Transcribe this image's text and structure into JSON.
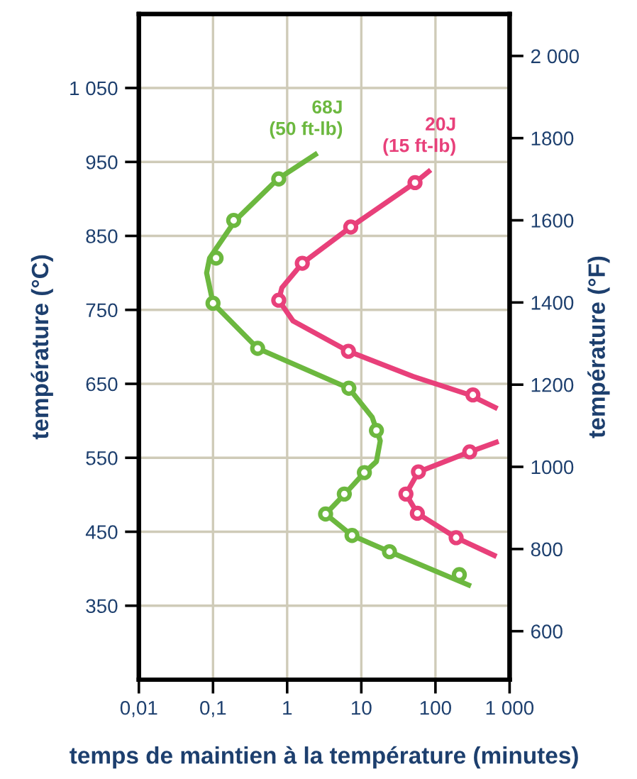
{
  "chart_data": {
    "type": "scatter",
    "xlabel": "temps de maintien à la température (minutes)",
    "ylabel": "température (°C)",
    "y2label": "température (°F)",
    "log": "x",
    "xlim": [
      0.01,
      1000
    ],
    "xticks": [
      {
        "value": 0.01,
        "label": "0,01"
      },
      {
        "value": 0.1,
        "label": "0,1"
      },
      1,
      10,
      100,
      {
        "value": 1000,
        "label": "1 000"
      }
    ],
    "ylim": [
      250,
      1150
    ],
    "yticks": [
      350,
      450,
      550,
      650,
      750,
      850,
      950,
      {
        "value": 1050,
        "label": "1 050"
      }
    ],
    "y2lim": [
      482,
      2102
    ],
    "y2ticks": [
      600,
      800,
      1000,
      1200,
      1400,
      1600,
      1800,
      {
        "value": 2000,
        "label": "2 000"
      }
    ],
    "grid": true,
    "series": [
      {
        "type": "line",
        "name": "68J\n(50 ft-lb)",
        "color": "#6cb83f",
        "marker": "none",
        "x": [
          2.4,
          0.75,
          0.2,
          0.09,
          0.082,
          0.1,
          0.4,
          6.8,
          14,
          18,
          16,
          11,
          6,
          3.3,
          7.5,
          24,
          280
        ],
        "values": [
          960,
          927,
          871,
          820,
          800,
          759,
          698,
          644,
          605,
          573,
          545,
          530,
          501,
          474,
          445,
          423,
          378
        ]
      },
      {
        "color": "#6cb83f",
        "marker": "circle",
        "x": [
          0.77,
          0.19,
          0.11,
          0.1,
          0.4,
          6.8,
          16,
          11,
          5.9,
          3.3,
          7.5,
          24,
          210
        ],
        "values": [
          927,
          871,
          820,
          759,
          698,
          644,
          587,
          530,
          501,
          474,
          445,
          423,
          392
        ]
      },
      {
        "type": "line",
        "name": "20J\n(15 ft-lb)",
        "color": "#e8407a",
        "marker": "none",
        "x": [
          81,
          53,
          7.2,
          1.6,
          0.85,
          0.77,
          1.2,
          6.7,
          50,
          290,
          640
        ],
        "values": [
          937,
          922,
          862,
          813,
          780,
          763,
          735,
          694,
          660,
          635,
          618
        ]
      },
      {
        "type": "line",
        "color": "#e8407a",
        "marker": "none",
        "x": [
          660,
          290,
          59,
          40,
          57,
          190,
          620
        ],
        "values": [
          571,
          558,
          531,
          501,
          475,
          442,
          418
        ]
      },
      {
        "color": "#e8407a",
        "marker": "circle",
        "x": [
          53,
          7.2,
          1.6,
          0.77,
          6.7,
          320,
          290,
          59,
          40,
          57,
          190
        ],
        "values": [
          922,
          862,
          813,
          763,
          694,
          635,
          558,
          531,
          501,
          475,
          442
        ]
      }
    ]
  }
}
